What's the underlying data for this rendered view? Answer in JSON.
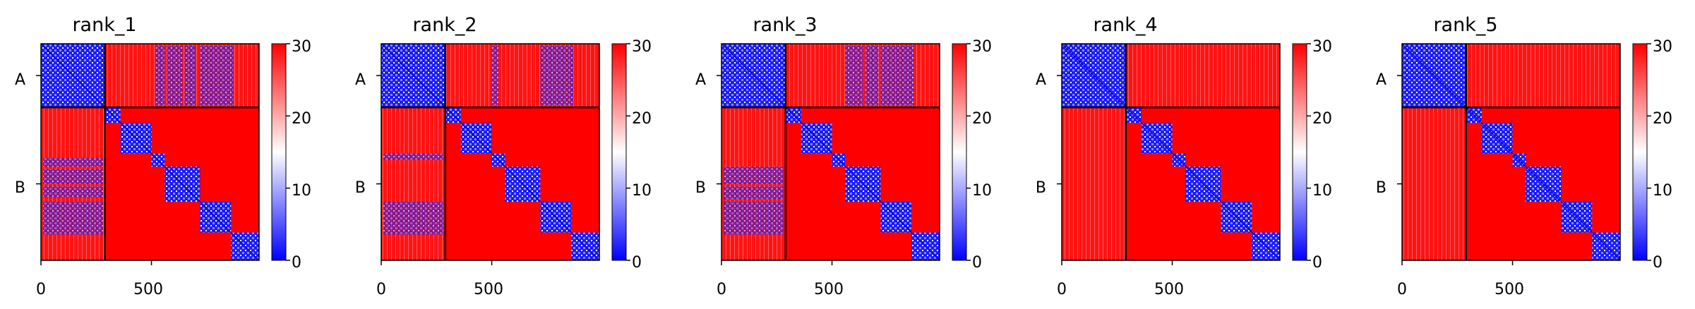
{
  "chart_data": [
    {
      "type": "heatmap",
      "title": "rank_1",
      "x_ticks": [
        "0",
        "500"
      ],
      "x_tick_values": [
        0,
        500
      ],
      "xlim": [
        0,
        987
      ],
      "y_tick_labels": [
        "A",
        "B"
      ],
      "chain_boundary": 290,
      "colorbar": {
        "min": 0,
        "max": 30,
        "ticks": [
          "0",
          "10",
          "20",
          "30"
        ],
        "tick_values": [
          0,
          10,
          20,
          30
        ]
      },
      "interchain_blue_cols": [
        [
          0,
          50
        ],
        [
          75,
          285
        ],
        [
          520,
          560
        ],
        [
          570,
          640
        ],
        [
          650,
          700
        ],
        [
          720,
          870
        ]
      ]
    },
    {
      "type": "heatmap",
      "title": "rank_2",
      "x_ticks": [
        "0",
        "500"
      ],
      "x_tick_values": [
        0,
        500
      ],
      "xlim": [
        0,
        987
      ],
      "y_tick_labels": [
        "A",
        "B"
      ],
      "chain_boundary": 290,
      "colorbar": {
        "min": 0,
        "max": 30,
        "ticks": [
          "0",
          "10",
          "20",
          "30"
        ],
        "tick_values": [
          0,
          10,
          20,
          30
        ]
      },
      "interchain_blue_cols": [
        [
          500,
          530
        ],
        [
          720,
          870
        ]
      ]
    },
    {
      "type": "heatmap",
      "title": "rank_3",
      "x_ticks": [
        "0",
        "500"
      ],
      "x_tick_values": [
        0,
        500
      ],
      "xlim": [
        0,
        987
      ],
      "y_tick_labels": [
        "A",
        "B"
      ],
      "chain_boundary": 290,
      "colorbar": {
        "min": 0,
        "max": 30,
        "ticks": [
          "0",
          "10",
          "20",
          "30"
        ],
        "tick_values": [
          0,
          10,
          20,
          30
        ]
      },
      "interchain_blue_cols": [
        [
          560,
          640
        ],
        [
          650,
          710
        ],
        [
          720,
          870
        ]
      ]
    },
    {
      "type": "heatmap",
      "title": "rank_4",
      "x_ticks": [
        "0",
        "500"
      ],
      "x_tick_values": [
        0,
        500
      ],
      "xlim": [
        0,
        987
      ],
      "y_tick_labels": [
        "A",
        "B"
      ],
      "chain_boundary": 290,
      "colorbar": {
        "min": 0,
        "max": 30,
        "ticks": [
          "0",
          "10",
          "20",
          "30"
        ],
        "tick_values": [
          0,
          10,
          20,
          30
        ]
      },
      "interchain_blue_cols": []
    },
    {
      "type": "heatmap",
      "title": "rank_5",
      "x_ticks": [
        "0",
        "500"
      ],
      "x_tick_values": [
        0,
        500
      ],
      "xlim": [
        0,
        987
      ],
      "y_tick_labels": [
        "A",
        "B"
      ],
      "chain_boundary": 290,
      "colorbar": {
        "min": 0,
        "max": 30,
        "ticks": [
          "0",
          "10",
          "20",
          "30"
        ],
        "tick_values": [
          0,
          10,
          20,
          30
        ]
      },
      "interchain_blue_cols": []
    }
  ],
  "domain_blocks": [
    [
      0,
      290
    ],
    [
      290,
      360
    ],
    [
      360,
      500
    ],
    [
      500,
      560
    ],
    [
      560,
      720
    ],
    [
      720,
      860
    ],
    [
      860,
      987
    ]
  ],
  "colors": {
    "low": "#0000ff",
    "mid": "#ffffff",
    "high": "#ff0000"
  }
}
